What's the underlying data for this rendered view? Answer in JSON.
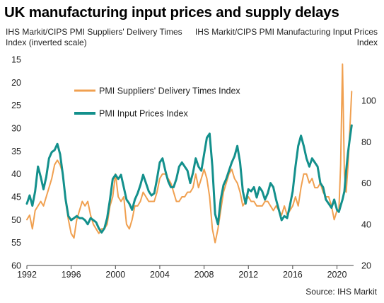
{
  "title": "UK manufacturing input prices and supply delays",
  "left_axis_label": "IHS Markit/CIPS PMI Suppliers' Delivery Times Index (inverted scale)",
  "right_axis_label": "IHS Markit/CIPS PMI Manufacturing Input Prices Index",
  "source": "Source: IHS Markit",
  "colors": {
    "delivery": "#f0a050",
    "input_prices": "#13908c",
    "axis": "#444444"
  },
  "chart_data": {
    "type": "line",
    "x_ticks": [
      "1992",
      "1996",
      "2000",
      "2004",
      "2008",
      "2012",
      "2016",
      "2020"
    ],
    "xlim": [
      1992,
      2021.5
    ],
    "left_axis": {
      "ticks": [
        "15",
        "20",
        "25",
        "30",
        "35",
        "40",
        "45",
        "50",
        "55",
        "60"
      ],
      "ylim": [
        60,
        15
      ],
      "inverted": true
    },
    "right_axis": {
      "ticks": [
        "20",
        "40",
        "60",
        "80",
        "100"
      ],
      "ylim": [
        20,
        120
      ]
    },
    "grid": false,
    "legend_position": "upper-left",
    "series": [
      {
        "name": "PMI Suppliers' Delivery Times Index",
        "axis": "left",
        "x": [
          1992.0,
          1992.25,
          1992.5,
          1992.75,
          1993.0,
          1993.25,
          1993.5,
          1993.75,
          1994.0,
          1994.25,
          1994.5,
          1994.75,
          1995.0,
          1995.25,
          1995.5,
          1995.75,
          1996.0,
          1996.25,
          1996.5,
          1996.75,
          1997.0,
          1997.25,
          1997.5,
          1997.75,
          1998.0,
          1998.25,
          1998.5,
          1998.75,
          1999.0,
          1999.25,
          1999.5,
          1999.75,
          2000.0,
          2000.25,
          2000.5,
          2000.75,
          2001.0,
          2001.25,
          2001.5,
          2001.75,
          2002.0,
          2002.25,
          2002.5,
          2002.75,
          2003.0,
          2003.25,
          2003.5,
          2003.75,
          2004.0,
          2004.25,
          2004.5,
          2004.75,
          2005.0,
          2005.25,
          2005.5,
          2005.75,
          2006.0,
          2006.25,
          2006.5,
          2006.75,
          2007.0,
          2007.25,
          2007.5,
          2007.75,
          2008.0,
          2008.25,
          2008.5,
          2008.75,
          2009.0,
          2009.25,
          2009.5,
          2009.75,
          2010.0,
          2010.25,
          2010.5,
          2010.75,
          2011.0,
          2011.25,
          2011.5,
          2011.75,
          2012.0,
          2012.25,
          2012.5,
          2012.75,
          2013.0,
          2013.25,
          2013.5,
          2013.75,
          2014.0,
          2014.25,
          2014.5,
          2014.75,
          2015.0,
          2015.25,
          2015.5,
          2015.75,
          2016.0,
          2016.25,
          2016.5,
          2016.75,
          2017.0,
          2017.25,
          2017.5,
          2017.75,
          2018.0,
          2018.25,
          2018.5,
          2018.75,
          2019.0,
          2019.25,
          2019.5,
          2019.75,
          2020.0,
          2020.17,
          2020.33,
          2020.5,
          2020.67,
          2020.83,
          2021.0,
          2021.17,
          2021.33
        ],
        "values": [
          50,
          49,
          52,
          48,
          47,
          46,
          47,
          45,
          43,
          41,
          38,
          37,
          38,
          40,
          46,
          50,
          53,
          54,
          50,
          48,
          46,
          47,
          46,
          49,
          51,
          52,
          53,
          52,
          52,
          51,
          47,
          45,
          40,
          45,
          46,
          45,
          51,
          52,
          50,
          47,
          47,
          46,
          44,
          45,
          46,
          46,
          46,
          44,
          41,
          40,
          40,
          41,
          42,
          44,
          46,
          46,
          45,
          45,
          44,
          44,
          43,
          40,
          43,
          41,
          39,
          41,
          45,
          52,
          55,
          52,
          48,
          44,
          42,
          40,
          39,
          41,
          42,
          44,
          47,
          46,
          45,
          46,
          46,
          47,
          47,
          47,
          46,
          46,
          47,
          48,
          47,
          48,
          49,
          47,
          49,
          48,
          47,
          45,
          47,
          43,
          40,
          40,
          42,
          41,
          43,
          43,
          42,
          44,
          45,
          45,
          47,
          50,
          48,
          48,
          38,
          16,
          40,
          44,
          38,
          30,
          22
        ]
      },
      {
        "name": "PMI Input Prices Index",
        "axis": "right",
        "x": [
          1992.0,
          1992.25,
          1992.5,
          1992.75,
          1993.0,
          1993.25,
          1993.5,
          1993.75,
          1994.0,
          1994.25,
          1994.5,
          1994.75,
          1995.0,
          1995.25,
          1995.5,
          1995.75,
          1996.0,
          1996.25,
          1996.5,
          1996.75,
          1997.0,
          1997.25,
          1997.5,
          1997.75,
          1998.0,
          1998.25,
          1998.5,
          1998.75,
          1999.0,
          1999.25,
          1999.5,
          1999.75,
          2000.0,
          2000.25,
          2000.5,
          2000.75,
          2001.0,
          2001.25,
          2001.5,
          2001.75,
          2002.0,
          2002.25,
          2002.5,
          2002.75,
          2003.0,
          2003.25,
          2003.5,
          2003.75,
          2004.0,
          2004.25,
          2004.5,
          2004.75,
          2005.0,
          2005.25,
          2005.5,
          2005.75,
          2006.0,
          2006.25,
          2006.5,
          2006.75,
          2007.0,
          2007.25,
          2007.5,
          2007.75,
          2008.0,
          2008.25,
          2008.5,
          2008.75,
          2009.0,
          2009.25,
          2009.5,
          2009.75,
          2010.0,
          2010.25,
          2010.5,
          2010.75,
          2011.0,
          2011.25,
          2011.5,
          2011.75,
          2012.0,
          2012.25,
          2012.5,
          2012.75,
          2013.0,
          2013.25,
          2013.5,
          2013.75,
          2014.0,
          2014.25,
          2014.5,
          2014.75,
          2015.0,
          2015.25,
          2015.5,
          2015.75,
          2016.0,
          2016.25,
          2016.5,
          2016.75,
          2017.0,
          2017.25,
          2017.5,
          2017.75,
          2018.0,
          2018.25,
          2018.5,
          2018.75,
          2019.0,
          2019.25,
          2019.5,
          2019.75,
          2020.0,
          2020.17,
          2020.33,
          2020.5,
          2020.67,
          2020.83,
          2021.0,
          2021.17,
          2021.33
        ],
        "values": [
          50,
          54,
          49,
          56,
          68,
          63,
          57,
          63,
          72,
          75,
          76,
          79,
          74,
          64,
          52,
          44,
          42,
          43,
          44,
          43,
          43,
          42,
          40,
          43,
          42,
          41,
          38,
          36,
          38,
          43,
          52,
          62,
          64,
          62,
          64,
          58,
          52,
          50,
          47,
          52,
          55,
          59,
          64,
          60,
          56,
          54,
          55,
          62,
          70,
          72,
          66,
          61,
          58,
          58,
          62,
          68,
          70,
          68,
          66,
          60,
          65,
          72,
          68,
          66,
          74,
          82,
          84,
          68,
          45,
          40,
          52,
          59,
          62,
          66,
          70,
          73,
          78,
          70,
          56,
          50,
          57,
          56,
          58,
          53,
          58,
          56,
          52,
          55,
          60,
          58,
          52,
          47,
          42,
          44,
          43,
          49,
          56,
          68,
          78,
          83,
          78,
          72,
          68,
          72,
          70,
          68,
          60,
          58,
          52,
          50,
          48,
          52,
          47,
          46,
          49,
          52,
          56,
          66,
          75,
          82,
          88
        ]
      }
    ]
  }
}
